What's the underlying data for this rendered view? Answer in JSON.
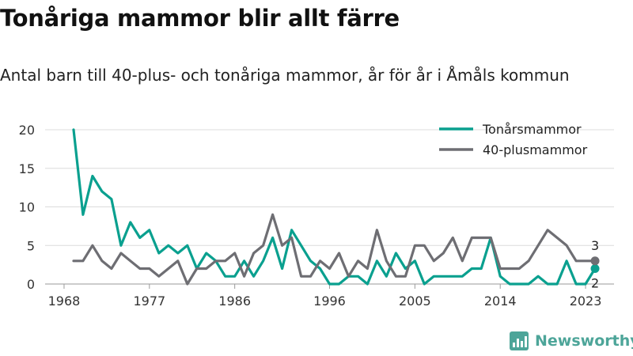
{
  "title": "Tonåriga mammor blir allt färre",
  "subtitle": "Antal barn till 40-plus- och tonåriga mammor, år för år i Åmåls kommun",
  "brand": {
    "name": "Newsworthy",
    "color": "#4da599",
    "icon": "bar-chart-logo-icon"
  },
  "chart_data": {
    "type": "line",
    "title": "Tonåriga mammor blir allt färre",
    "subtitle": "Antal barn till 40-plus- och tonåriga mammor, år för år i Åmåls kommun",
    "xlabel": "",
    "ylabel": "",
    "xlim": [
      1966,
      2026
    ],
    "ylim": [
      0,
      20
    ],
    "x_ticks": [
      "1968",
      "1977",
      "1986",
      "1996",
      "2005",
      "2014",
      "2023"
    ],
    "y_ticks": [
      "0",
      "5",
      "10",
      "15",
      "20"
    ],
    "grid": "horizontal",
    "legend_position": "top-right",
    "x": [
      1969,
      1970,
      1971,
      1972,
      1973,
      1974,
      1975,
      1976,
      1977,
      1978,
      1979,
      1980,
      1981,
      1982,
      1983,
      1984,
      1985,
      1986,
      1987,
      1988,
      1989,
      1990,
      1991,
      1992,
      1993,
      1994,
      1995,
      1996,
      1997,
      1998,
      1999,
      2000,
      2001,
      2002,
      2003,
      2004,
      2005,
      2006,
      2007,
      2008,
      2009,
      2010,
      2011,
      2012,
      2013,
      2014,
      2015,
      2016,
      2017,
      2018,
      2019,
      2020,
      2021,
      2022,
      2023,
      2024
    ],
    "series": [
      {
        "name": "Tonårsmammor",
        "color": "#0aa08f",
        "values": [
          20,
          9,
          14,
          12,
          11,
          5,
          8,
          6,
          7,
          4,
          5,
          4,
          5,
          2,
          4,
          3,
          1,
          1,
          3,
          1,
          3,
          6,
          2,
          7,
          5,
          3,
          2,
          0,
          0,
          1,
          1,
          0,
          3,
          1,
          4,
          2,
          3,
          0,
          1,
          1,
          1,
          1,
          2,
          2,
          6,
          1,
          0,
          0,
          0,
          1,
          0,
          0,
          3,
          0,
          0,
          2
        ],
        "end_label": "2"
      },
      {
        "name": "40-plusmammor",
        "color": "#6e6e73",
        "values": [
          3,
          3,
          5,
          3,
          2,
          4,
          3,
          2,
          2,
          1,
          2,
          3,
          0,
          2,
          2,
          3,
          3,
          4,
          1,
          4,
          5,
          9,
          5,
          6,
          1,
          1,
          3,
          2,
          4,
          1,
          3,
          2,
          7,
          3,
          1,
          1,
          5,
          5,
          3,
          4,
          6,
          3,
          6,
          6,
          6,
          2,
          2,
          2,
          3,
          5,
          7,
          6,
          5,
          3,
          3,
          3
        ],
        "end_label": "3"
      }
    ]
  }
}
